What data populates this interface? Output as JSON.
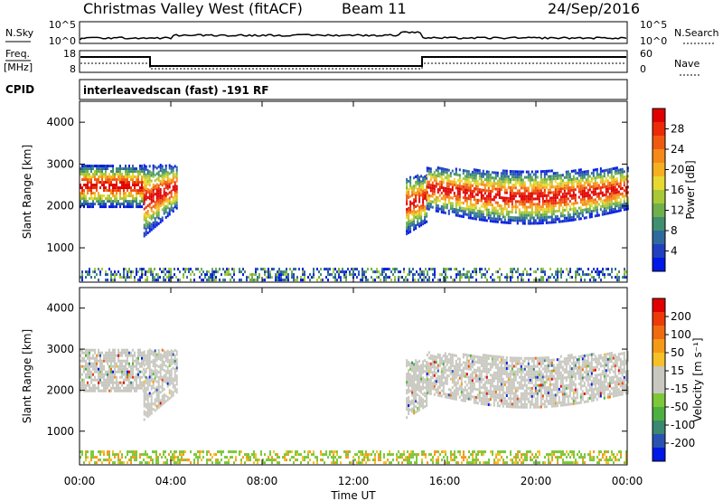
{
  "header": {
    "station": "Christmas Valley West (fitACF)",
    "beam": "Beam 11",
    "date": "24/Sep/2016"
  },
  "nsky_panel": {
    "left_label": "N.Sky",
    "right_label": "N.Search",
    "left_ticks": [
      "10^5",
      "10^0"
    ],
    "right_ticks": [
      "10^5",
      "10^0"
    ]
  },
  "freq_panel": {
    "label_line1": "Freq.",
    "label_line2": "[MHz]",
    "left_ticks": [
      "18",
      "8"
    ],
    "right_label": "Nave",
    "right_ticks": [
      "60",
      "0"
    ]
  },
  "cpid": {
    "label": "CPID",
    "value": "interleavedscan (fast) -191 RF"
  },
  "chart_data": [
    {
      "type": "heatmap",
      "name": "power",
      "ylabel": "Slant Range [km]",
      "xlabel": "Time UT",
      "x_ticks": [
        "00:00",
        "04:00",
        "08:00",
        "12:00",
        "16:00",
        "20:00",
        "00:00"
      ],
      "xlim_hours": [
        0,
        24
      ],
      "ylim_km": [
        180,
        4500
      ],
      "y_ticks": [
        1000,
        2000,
        3000,
        4000
      ],
      "colorbar": {
        "label": "Power [dB]",
        "ticks": [
          "4",
          "8",
          "12",
          "16",
          "20",
          "24",
          "28"
        ],
        "colors": [
          "#0018e6",
          "#2040c0",
          "#2e6a9e",
          "#3f8f70",
          "#6fb04a",
          "#a8c838",
          "#e8d830",
          "#f5b020",
          "#f58a18",
          "#f05a10",
          "#ec2a08",
          "#e00000"
        ]
      },
      "bands": [
        {
          "t": [
            0,
            2.8
          ],
          "r": [
            1950,
            2950
          ],
          "level": "high"
        },
        {
          "t": [
            2.8,
            4.3
          ],
          "r": [
            1250,
            2950
          ],
          "level": "high"
        },
        {
          "t": [
            14.3,
            15.2
          ],
          "r": [
            1300,
            2700
          ],
          "level": "high"
        },
        {
          "t": [
            15.2,
            24
          ],
          "r": [
            1500,
            3000
          ],
          "level": "high"
        },
        {
          "t": [
            0,
            24
          ],
          "r": [
            200,
            500
          ],
          "level": "low"
        }
      ]
    },
    {
      "type": "heatmap",
      "name": "velocity",
      "ylabel": "Slant Range [km]",
      "xlabel": "Time UT",
      "x_ticks": [
        "00:00",
        "04:00",
        "08:00",
        "12:00",
        "16:00",
        "20:00",
        "00:00"
      ],
      "xlim_hours": [
        0,
        24
      ],
      "ylim_km": [
        180,
        4500
      ],
      "y_ticks": [
        1000,
        2000,
        3000,
        4000
      ],
      "colorbar": {
        "label": "Velocity [m s⁻¹]",
        "ticks": [
          "200",
          "100",
          "50",
          "15",
          "-15",
          "-50",
          "-100",
          "-200"
        ],
        "colors": [
          "#0018e6",
          "#2a52b0",
          "#3a8870",
          "#4cb040",
          "#7cc838",
          "#c8c8c0",
          "#c8c8c0",
          "#f5c028",
          "#f59a18",
          "#f06a10",
          "#ec3a08",
          "#e00000"
        ]
      },
      "bands": [
        {
          "t": [
            0,
            2.8
          ],
          "r": [
            1950,
            2950
          ],
          "level": "gray"
        },
        {
          "t": [
            2.8,
            4.3
          ],
          "r": [
            1250,
            2950
          ],
          "level": "gray"
        },
        {
          "t": [
            14.3,
            15.2
          ],
          "r": [
            1300,
            2700
          ],
          "level": "gray"
        },
        {
          "t": [
            15.2,
            24
          ],
          "r": [
            1500,
            3000
          ],
          "level": "gray"
        },
        {
          "t": [
            0,
            24
          ],
          "r": [
            200,
            500
          ],
          "level": "ground"
        }
      ]
    }
  ]
}
